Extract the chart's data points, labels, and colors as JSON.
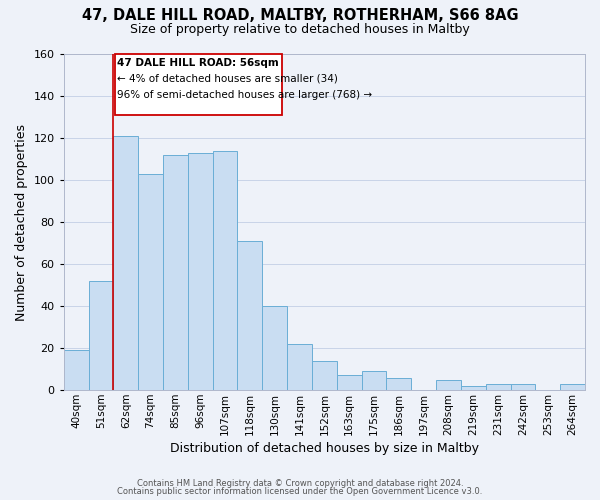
{
  "title1": "47, DALE HILL ROAD, MALTBY, ROTHERHAM, S66 8AG",
  "title2": "Size of property relative to detached houses in Maltby",
  "xlabel": "Distribution of detached houses by size in Maltby",
  "ylabel": "Number of detached properties",
  "bar_labels": [
    "40sqm",
    "51sqm",
    "62sqm",
    "74sqm",
    "85sqm",
    "96sqm",
    "107sqm",
    "118sqm",
    "130sqm",
    "141sqm",
    "152sqm",
    "163sqm",
    "175sqm",
    "186sqm",
    "197sqm",
    "208sqm",
    "219sqm",
    "231sqm",
    "242sqm",
    "253sqm",
    "264sqm"
  ],
  "bar_values": [
    19,
    52,
    121,
    103,
    112,
    113,
    114,
    71,
    40,
    22,
    14,
    7,
    9,
    6,
    0,
    5,
    2,
    3,
    3,
    0,
    3
  ],
  "bar_color": "#c9ddf2",
  "bar_edge_color": "#6aaed6",
  "grid_color": "#c8d4e8",
  "background_color": "#eef2f9",
  "ylim": [
    0,
    160
  ],
  "yticks": [
    0,
    20,
    40,
    60,
    80,
    100,
    120,
    140,
    160
  ],
  "vline_color": "#cc0000",
  "annotation_lines": [
    "47 DALE HILL ROAD: 56sqm",
    "← 4% of detached houses are smaller (34)",
    "96% of semi-detached houses are larger (768) →"
  ],
  "footer1": "Contains HM Land Registry data © Crown copyright and database right 2024.",
  "footer2": "Contains public sector information licensed under the Open Government Licence v3.0."
}
